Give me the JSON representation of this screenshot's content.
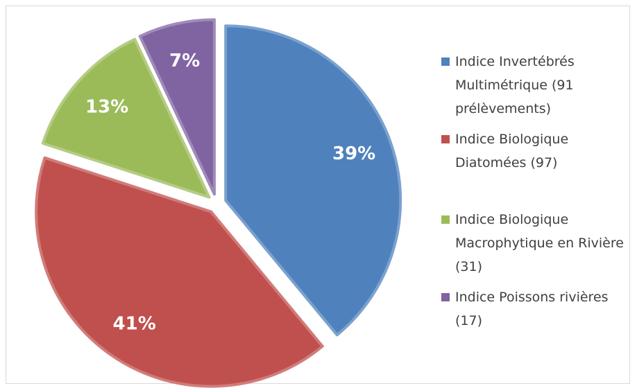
{
  "chart_data": {
    "type": "pie",
    "categories": [
      "Indice Invertébrés Multimétrique (91 prélèvements)",
      "Indice Biologique Diatomées (97)",
      "Indice Biologique Macrophytique en Rivière (31)",
      "Indice Poissons rivières (17)"
    ],
    "values": [
      39,
      41,
      13,
      7
    ],
    "value_labels": [
      "39%",
      "41%",
      "13%",
      "7%"
    ],
    "colors": [
      "#4f81bd",
      "#c0504d",
      "#9bbb59",
      "#8064a2"
    ],
    "legend": "right"
  }
}
